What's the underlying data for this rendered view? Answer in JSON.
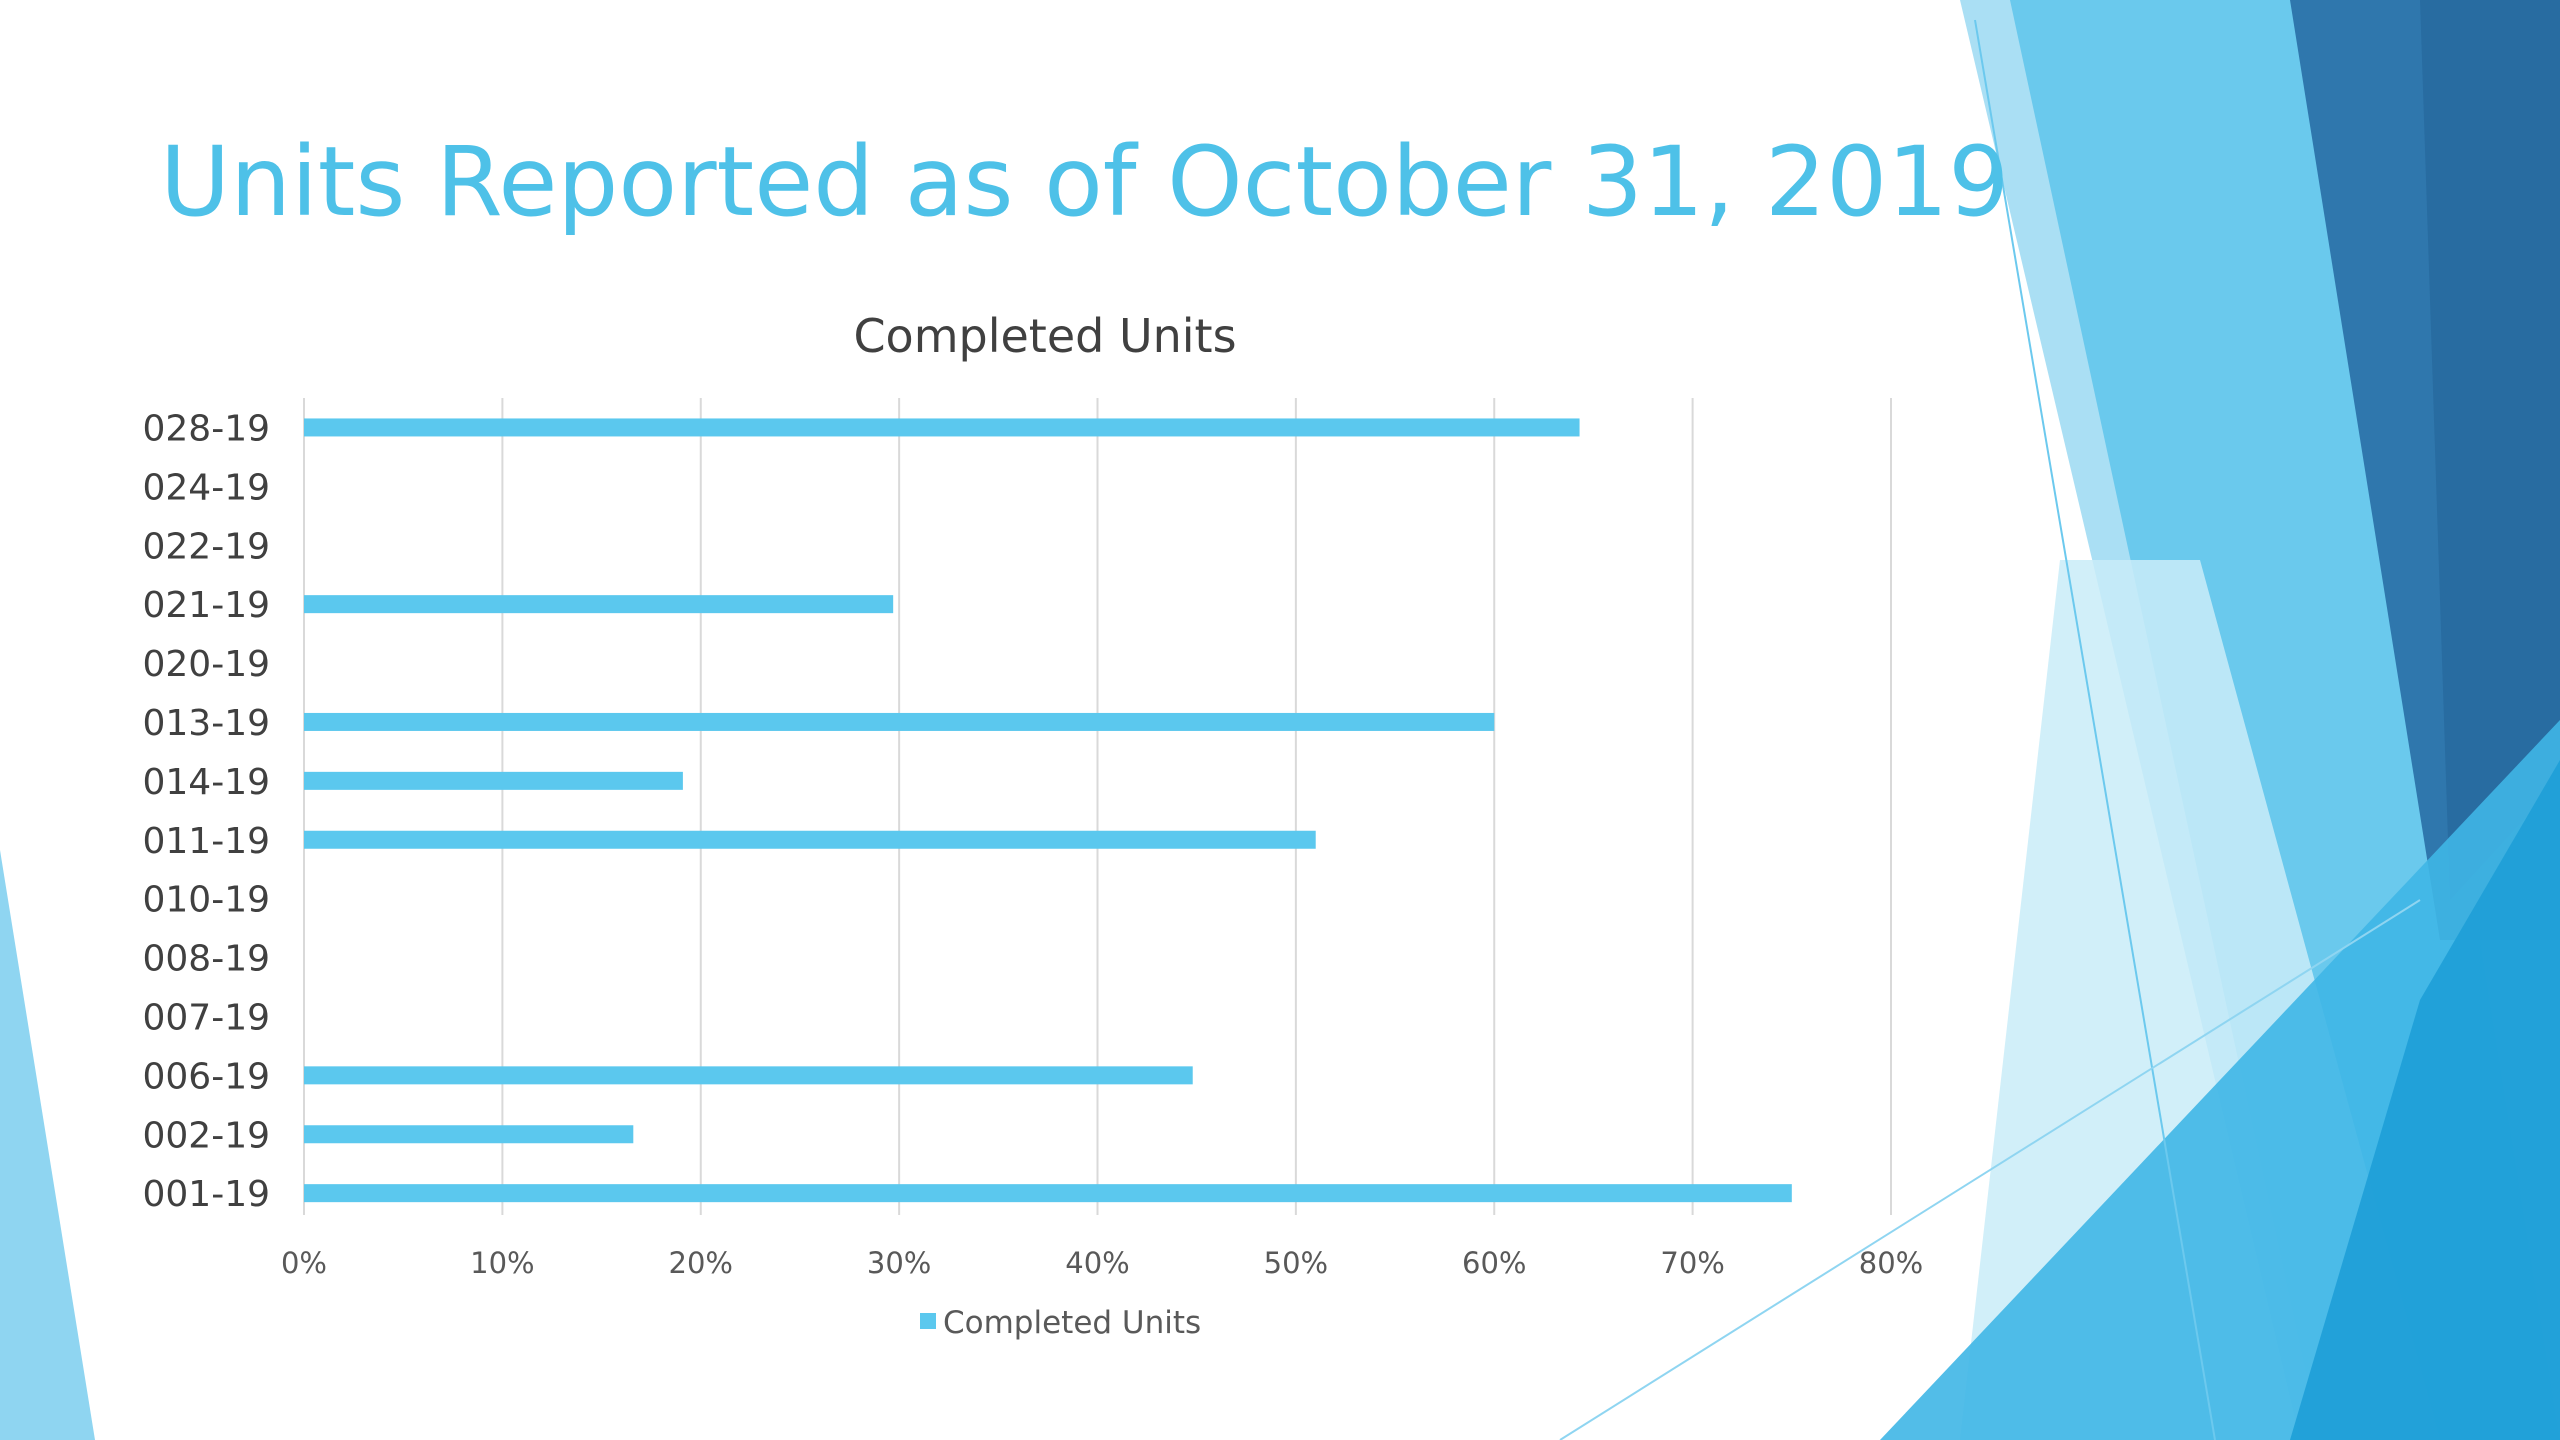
{
  "slide": {
    "title": "Units Reported as of October 31, 2019"
  },
  "colors": {
    "title": "#4ec1e8",
    "bar": "#5bc8ee",
    "text": "#404040",
    "grid": "#d9d9d9",
    "decor_light": "#9bd9f2",
    "decor_mid": "#5cc2ea",
    "decor_dark": "#2a6ea4"
  },
  "chart_data": {
    "type": "bar",
    "orientation": "horizontal",
    "title": "Completed Units",
    "categories": [
      "028-19",
      "024-19",
      "022-19",
      "021-19",
      "020-19",
      "013-19",
      "014-19",
      "011-19",
      "010-19",
      "008-19",
      "007-19",
      "006-19",
      "002-19",
      "001-19"
    ],
    "series": [
      {
        "name": "Completed Units",
        "values": [
          0.643,
          0,
          0,
          0.297,
          0,
          0.6,
          0.191,
          0.51,
          0,
          0,
          0,
          0.448,
          0.166,
          0.75
        ]
      }
    ],
    "xlim": [
      0,
      0.8
    ],
    "xticks": [
      0,
      0.1,
      0.2,
      0.3,
      0.4,
      0.5,
      0.6,
      0.7,
      0.8
    ],
    "xtick_labels": [
      "0%",
      "10%",
      "20%",
      "30%",
      "40%",
      "50%",
      "60%",
      "70%",
      "80%"
    ],
    "grid": true,
    "legend": "bottom"
  }
}
